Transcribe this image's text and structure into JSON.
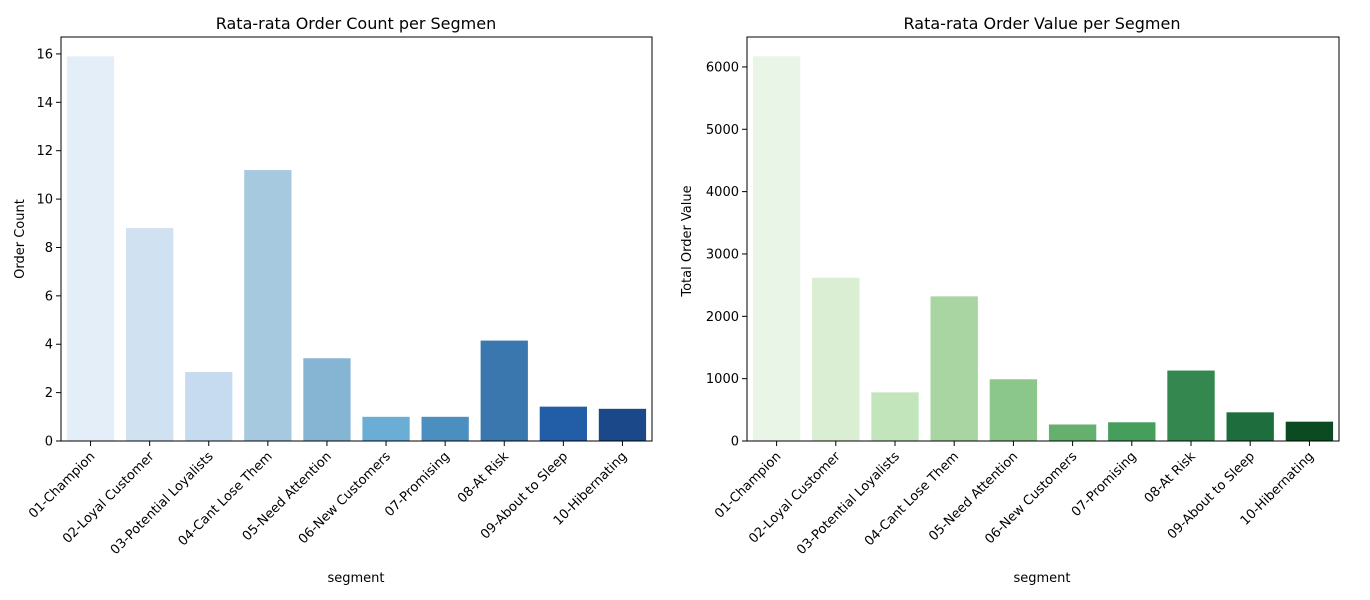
{
  "chart_data": [
    {
      "type": "bar",
      "title": "Rata-rata Order Count per Segmen",
      "xlabel": "segment",
      "ylabel": "Order Count",
      "categories": [
        "01-Champion",
        "02-Loyal Customer",
        "03-Potential Loyalists",
        "04-Cant Lose Them",
        "05-Need Attention",
        "06-New Customers",
        "07-Promising",
        "08-At Risk",
        "09-About to Sleep",
        "10-Hibernating"
      ],
      "values": [
        15.9,
        8.8,
        2.85,
        11.2,
        3.42,
        1.0,
        1.0,
        4.15,
        1.42,
        1.33
      ],
      "ylim": [
        0,
        16.7
      ],
      "yticks": [
        0,
        2,
        4,
        6,
        8,
        10,
        12,
        14,
        16
      ],
      "grid": false,
      "palette": "Blues",
      "colors": [
        "#e3eef9",
        "#d0e1f2",
        "#c6dbef",
        "#a6c9df",
        "#86b4d3",
        "#6aaed6",
        "#4a8fc0",
        "#3a77ae",
        "#225ea8",
        "#1a4889"
      ]
    },
    {
      "type": "bar",
      "title": "Rata-rata Order Value per Segmen",
      "xlabel": "segment",
      "ylabel": "Total Order Value",
      "categories": [
        "01-Champion",
        "02-Loyal Customer",
        "03-Potential Loyalists",
        "04-Cant Lose Them",
        "05-Need Attention",
        "06-New Customers",
        "07-Promising",
        "08-At Risk",
        "09-About to Sleep",
        "10-Hibernating"
      ],
      "values": [
        6170,
        2620,
        780,
        2320,
        990,
        265,
        300,
        1130,
        460,
        310
      ],
      "ylim": [
        0,
        6480
      ],
      "yticks": [
        0,
        1000,
        2000,
        3000,
        4000,
        5000,
        6000
      ],
      "grid": false,
      "palette": "Greens",
      "colors": [
        "#e9f5e6",
        "#d9eed3",
        "#c3e5bc",
        "#a8d5a2",
        "#8bc68a",
        "#66b06d",
        "#469e5c",
        "#33874f",
        "#1d6e3c",
        "#0c4a22"
      ]
    }
  ]
}
